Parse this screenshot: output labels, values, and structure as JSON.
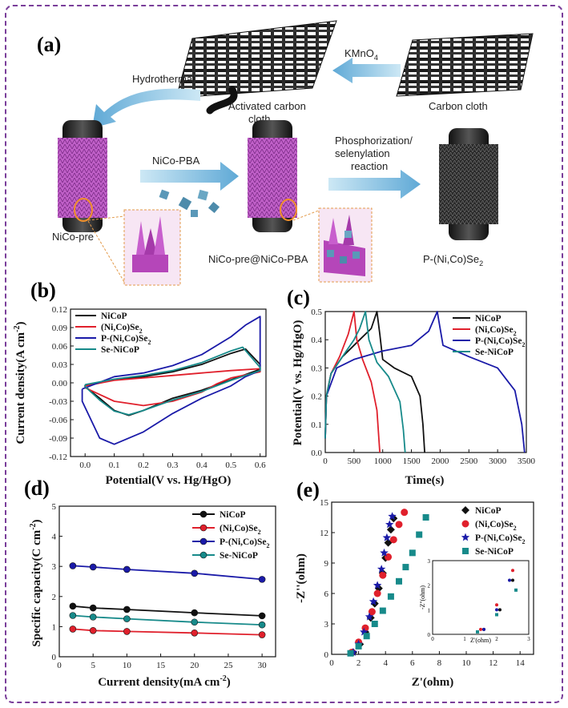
{
  "panel_a": {
    "label": "(a)",
    "hydrothermal": "Hydrothermal",
    "kmno4": "KMnO",
    "kmno4_sub": "4",
    "activated_1": "Activated carbon",
    "activated_2": "cloth",
    "carbon_cloth": "Carbon cloth",
    "nicopba_arrow": "NiCo-PBA",
    "phos_1": "Phosphorization/",
    "phos_2": "selenylation",
    "phos_3": "reaction",
    "nicopre": "NiCo-pre",
    "nicopre_pba": "NiCo-pre@NiCo-PBA",
    "product": "P-(Ni,Co)Se",
    "product_sub": "2"
  },
  "colors": {
    "NiCoP": "#111111",
    "NiCoSe2": "#e0202c",
    "PNiCoSe2": "#1a1aa8",
    "SeNiCoP": "#178a8a",
    "frame": "#7a3e9a",
    "orange": "#f0902a"
  },
  "legend": {
    "NiCoP": "NiCoP",
    "NiCoSe2": "(Ni,Co)Se",
    "PNiCoSe2": "P-(Ni,Co)Se",
    "SeNiCoP": "Se-NiCoP",
    "sub2": "2"
  },
  "chart_data": [
    {
      "panel": "(b)",
      "type": "line",
      "xlabel": "Potential(V vs. Hg/HgO)",
      "ylabel": "Current density(A cm",
      "ylabel_sup": "-2",
      "ylabel_end": ")",
      "xlim": [
        -0.05,
        0.62
      ],
      "ylim": [
        -0.12,
        0.12
      ],
      "xticks": [
        "0.0",
        "0.1",
        "0.2",
        "0.3",
        "0.4",
        "0.5",
        "0.6"
      ],
      "yticks": [
        "-0.12",
        "-0.09",
        "-0.06",
        "-0.03",
        "0.00",
        "0.03",
        "0.06",
        "0.09",
        "0.12"
      ],
      "series": [
        {
          "key": "NiCoP",
          "upper": [
            [
              0.0,
              -0.004
            ],
            [
              0.1,
              0.005
            ],
            [
              0.2,
              0.01
            ],
            [
              0.3,
              0.018
            ],
            [
              0.4,
              0.03
            ],
            [
              0.5,
              0.048
            ],
            [
              0.55,
              0.055
            ],
            [
              0.6,
              0.03
            ]
          ],
          "lower": [
            [
              0.6,
              0.022
            ],
            [
              0.5,
              0.005
            ],
            [
              0.4,
              -0.012
            ],
            [
              0.3,
              -0.025
            ],
            [
              0.2,
              -0.045
            ],
            [
              0.15,
              -0.053
            ],
            [
              0.1,
              -0.045
            ],
            [
              0.05,
              -0.025
            ],
            [
              0.0,
              -0.006
            ]
          ]
        },
        {
          "key": "NiCoSe2",
          "upper": [
            [
              0.0,
              -0.005
            ],
            [
              0.1,
              0.004
            ],
            [
              0.2,
              0.008
            ],
            [
              0.3,
              0.012
            ],
            [
              0.4,
              0.016
            ],
            [
              0.5,
              0.02
            ],
            [
              0.6,
              0.023
            ]
          ],
          "lower": [
            [
              0.6,
              0.018
            ],
            [
              0.5,
              0.008
            ],
            [
              0.45,
              -0.002
            ],
            [
              0.4,
              -0.015
            ],
            [
              0.3,
              -0.03
            ],
            [
              0.2,
              -0.037
            ],
            [
              0.1,
              -0.03
            ],
            [
              0.0,
              -0.008
            ]
          ]
        },
        {
          "key": "PNiCoSe2",
          "upper": [
            [
              -0.01,
              -0.01
            ],
            [
              0.1,
              0.01
            ],
            [
              0.2,
              0.016
            ],
            [
              0.3,
              0.028
            ],
            [
              0.4,
              0.046
            ],
            [
              0.5,
              0.075
            ],
            [
              0.55,
              0.094
            ],
            [
              0.6,
              0.108
            ],
            [
              0.6,
              0.02
            ]
          ],
          "lower": [
            [
              0.6,
              0.02
            ],
            [
              0.55,
              0.01
            ],
            [
              0.5,
              -0.005
            ],
            [
              0.4,
              -0.025
            ],
            [
              0.3,
              -0.05
            ],
            [
              0.2,
              -0.08
            ],
            [
              0.1,
              -0.1
            ],
            [
              0.05,
              -0.09
            ],
            [
              0.02,
              -0.06
            ],
            [
              -0.01,
              -0.03
            ]
          ]
        },
        {
          "key": "SeNiCoP",
          "upper": [
            [
              0.0,
              -0.003
            ],
            [
              0.1,
              0.006
            ],
            [
              0.2,
              0.012
            ],
            [
              0.3,
              0.02
            ],
            [
              0.4,
              0.033
            ],
            [
              0.5,
              0.052
            ],
            [
              0.54,
              0.058
            ],
            [
              0.6,
              0.025
            ]
          ],
          "lower": [
            [
              0.6,
              0.02
            ],
            [
              0.5,
              0.004
            ],
            [
              0.4,
              -0.014
            ],
            [
              0.3,
              -0.028
            ],
            [
              0.2,
              -0.045
            ],
            [
              0.15,
              -0.052
            ],
            [
              0.1,
              -0.046
            ],
            [
              0.05,
              -0.028
            ],
            [
              0.0,
              -0.006
            ]
          ]
        }
      ]
    },
    {
      "panel": "(c)",
      "type": "line",
      "xlabel": "Time(s)",
      "ylabel": "Potential(V vs. Hg/HgO)",
      "xlim": [
        0,
        3500
      ],
      "ylim": [
        0,
        0.5
      ],
      "xticks": [
        "0",
        "500",
        "1000",
        "1500",
        "2000",
        "2500",
        "3000",
        "3500"
      ],
      "yticks": [
        "0.0",
        "0.1",
        "0.2",
        "0.3",
        "0.4",
        "0.5"
      ],
      "series": [
        {
          "key": "NiCoP",
          "points": [
            [
              0,
              0.05
            ],
            [
              20,
              0.2
            ],
            [
              100,
              0.28
            ],
            [
              300,
              0.34
            ],
            [
              600,
              0.4
            ],
            [
              800,
              0.44
            ],
            [
              900,
              0.5
            ],
            [
              950,
              0.42
            ],
            [
              1000,
              0.33
            ],
            [
              1200,
              0.3
            ],
            [
              1500,
              0.27
            ],
            [
              1650,
              0.2
            ],
            [
              1700,
              0.1
            ],
            [
              1730,
              0.0
            ]
          ]
        },
        {
          "key": "NiCoSe2",
          "points": [
            [
              0,
              0.05
            ],
            [
              20,
              0.2
            ],
            [
              100,
              0.28
            ],
            [
              250,
              0.34
            ],
            [
              400,
              0.42
            ],
            [
              500,
              0.5
            ],
            [
              550,
              0.4
            ],
            [
              650,
              0.33
            ],
            [
              800,
              0.25
            ],
            [
              900,
              0.15
            ],
            [
              950,
              0.0
            ]
          ]
        },
        {
          "key": "PNiCoSe2",
          "points": [
            [
              0,
              0.05
            ],
            [
              20,
              0.2
            ],
            [
              200,
              0.3
            ],
            [
              500,
              0.33
            ],
            [
              1000,
              0.36
            ],
            [
              1500,
              0.38
            ],
            [
              1800,
              0.43
            ],
            [
              1950,
              0.5
            ],
            [
              2050,
              0.38
            ],
            [
              2500,
              0.34
            ],
            [
              3000,
              0.3
            ],
            [
              3300,
              0.22
            ],
            [
              3420,
              0.1
            ],
            [
              3470,
              0.0
            ]
          ]
        },
        {
          "key": "SeNiCoP",
          "points": [
            [
              0,
              0.05
            ],
            [
              20,
              0.2
            ],
            [
              100,
              0.28
            ],
            [
              300,
              0.34
            ],
            [
              500,
              0.4
            ],
            [
              600,
              0.44
            ],
            [
              700,
              0.5
            ],
            [
              760,
              0.4
            ],
            [
              900,
              0.32
            ],
            [
              1100,
              0.27
            ],
            [
              1300,
              0.18
            ],
            [
              1360,
              0.08
            ],
            [
              1390,
              0.0
            ]
          ]
        }
      ]
    },
    {
      "panel": "(d)",
      "type": "line",
      "xlabel": "Current density(mA cm",
      "xlabel_sup": "-2",
      "xlabel_end": ")",
      "ylabel": "Specific capacity(C cm",
      "ylabel_sup": "-2",
      "ylabel_end": ")",
      "xlim": [
        0,
        32
      ],
      "ylim": [
        0,
        5
      ],
      "xticks": [
        "0",
        "5",
        "10",
        "15",
        "20",
        "25",
        "30"
      ],
      "yticks": [
        "0",
        "1",
        "2",
        "3",
        "4",
        "5"
      ],
      "x": [
        2,
        5,
        10,
        20,
        30
      ],
      "series": [
        {
          "key": "NiCoP",
          "values": [
            1.68,
            1.62,
            1.57,
            1.46,
            1.36
          ]
        },
        {
          "key": "NiCoSe2",
          "values": [
            0.92,
            0.87,
            0.84,
            0.79,
            0.73
          ]
        },
        {
          "key": "PNiCoSe2",
          "values": [
            3.02,
            2.98,
            2.9,
            2.77,
            2.57
          ]
        },
        {
          "key": "SeNiCoP",
          "values": [
            1.37,
            1.32,
            1.26,
            1.15,
            1.06
          ]
        }
      ]
    },
    {
      "panel": "(e)",
      "type": "scatter",
      "xlabel": "Z'(ohm)",
      "ylabel": "-Z''(ohm)",
      "xlim": [
        0,
        15
      ],
      "ylim": [
        0,
        15
      ],
      "xticks": [
        "0",
        "2",
        "4",
        "6",
        "8",
        "10",
        "12",
        "14"
      ],
      "yticks": [
        "0",
        "3",
        "6",
        "9",
        "12",
        "15"
      ],
      "series": [
        {
          "key": "NiCoP",
          "marker": "diamond",
          "points": [
            [
              1.6,
              0.2
            ],
            [
              2.1,
              1.0
            ],
            [
              2.5,
              2.2
            ],
            [
              2.9,
              3.6
            ],
            [
              3.2,
              5.0
            ],
            [
              3.5,
              6.5
            ],
            [
              3.8,
              8.0
            ],
            [
              4.0,
              9.5
            ],
            [
              4.2,
              11.0
            ],
            [
              4.4,
              12.3
            ],
            [
              4.6,
              13.4
            ]
          ]
        },
        {
          "key": "NiCoSe2",
          "marker": "circle",
          "points": [
            [
              1.5,
              0.2
            ],
            [
              2.0,
              1.2
            ],
            [
              2.5,
              2.6
            ],
            [
              3.0,
              4.2
            ],
            [
              3.4,
              6.0
            ],
            [
              3.8,
              7.8
            ],
            [
              4.2,
              9.6
            ],
            [
              4.6,
              11.3
            ],
            [
              5.0,
              12.8
            ],
            [
              5.4,
              14.0
            ]
          ]
        },
        {
          "key": "PNiCoSe2",
          "marker": "star",
          "points": [
            [
              1.6,
              0.2
            ],
            [
              2.0,
              1.0
            ],
            [
              2.4,
              2.2
            ],
            [
              2.8,
              3.7
            ],
            [
              3.1,
              5.2
            ],
            [
              3.4,
              6.8
            ],
            [
              3.7,
              8.4
            ],
            [
              3.9,
              10.0
            ],
            [
              4.1,
              11.5
            ],
            [
              4.3,
              12.8
            ],
            [
              4.5,
              13.6
            ]
          ]
        },
        {
          "key": "SeNiCoP",
          "marker": "square",
          "points": [
            [
              1.4,
              0.1
            ],
            [
              2.0,
              0.8
            ],
            [
              2.6,
              1.8
            ],
            [
              3.2,
              3.0
            ],
            [
              3.8,
              4.3
            ],
            [
              4.4,
              5.7
            ],
            [
              5.0,
              7.2
            ],
            [
              5.5,
              8.6
            ],
            [
              6.0,
              10.0
            ],
            [
              6.5,
              11.8
            ],
            [
              7.0,
              13.5
            ]
          ]
        }
      ],
      "inset": {
        "xlabel": "Z'(ohm)",
        "ylabel": "-Z''(ohm)",
        "xticks": [
          "0",
          "1",
          "2",
          "3"
        ],
        "yticks": [
          "0",
          "1",
          "2",
          "3"
        ]
      }
    }
  ]
}
